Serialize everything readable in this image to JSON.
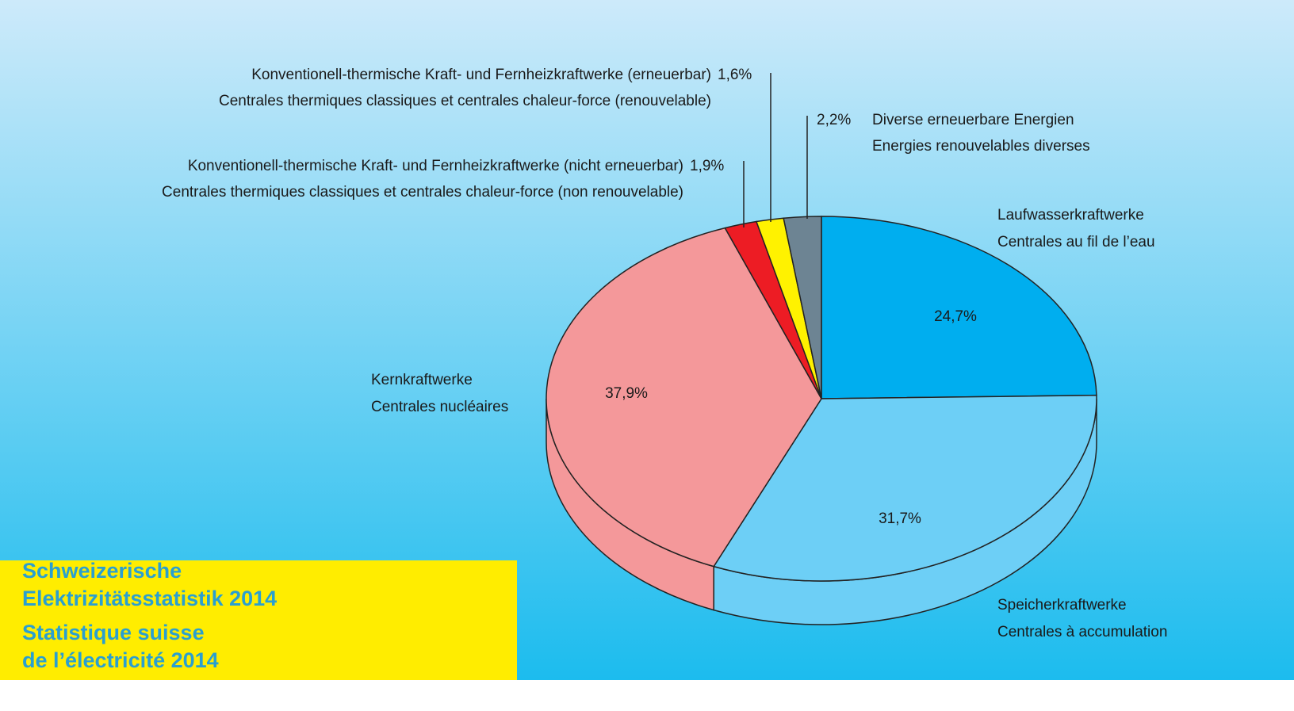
{
  "chart_data": {
    "type": "pie",
    "title": [
      "Schweizerische",
      "Elektrizitätsstatistik 2014",
      "Statistique suisse",
      "de l’électricité 2014"
    ],
    "slices": [
      {
        "name_de": "Laufwasserkraftwerke",
        "name_fr": "Centrales au fil de l’eau",
        "value": 24.7,
        "value_label": "24,7%",
        "color": "#00aeef"
      },
      {
        "name_de": "Speicherkraftwerke",
        "name_fr": "Centrales à accumulation",
        "value": 31.7,
        "value_label": "31,7%",
        "color": "#6dcff6"
      },
      {
        "name_de": "Kernkraftwerke",
        "name_fr": "Centrales nucléaires",
        "value": 37.9,
        "value_label": "37,9%",
        "color": "#f4989a"
      },
      {
        "name_de": "Konventionell-thermische Kraft- und Fernheizkraftwerke (nicht erneuerbar)",
        "name_fr": "Centrales thermiques classiques et centrales chaleur-force (non renouvelable)",
        "value": 1.9,
        "value_label": "1,9%",
        "color": "#ed1c24"
      },
      {
        "name_de": "Konventionell-thermische Kraft- und Fernheizkraftwerke (erneuerbar)",
        "name_fr": "Centrales thermiques classiques et centrales chaleur-force (renouvelable)",
        "value": 1.6,
        "value_label": "1,6%",
        "color": "#fff200"
      },
      {
        "name_de": "Diverse erneuerbare Energien",
        "name_fr": "Energies renouvelables diverses",
        "value": 2.2,
        "value_label": "2,2%",
        "color": "#6d8493"
      }
    ]
  }
}
